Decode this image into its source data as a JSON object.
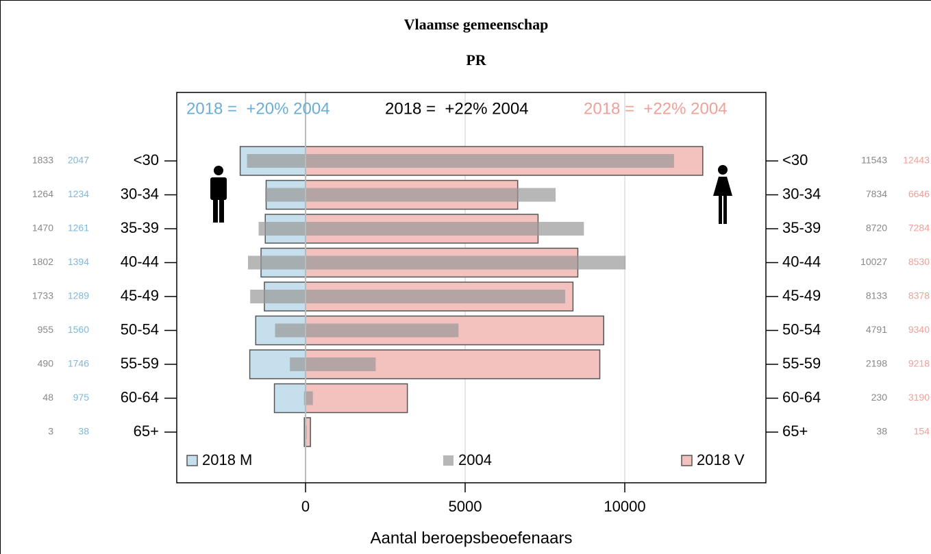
{
  "chart_data": {
    "type": "pyramid",
    "title": "Vlaamse gemeenschap",
    "subtitle": "PR",
    "x_label": "Aantal beroepsbeoefenaars",
    "categories": [
      "<30",
      "30-34",
      "35-39",
      "40-44",
      "45-49",
      "50-54",
      "55-59",
      "60-64",
      "65+"
    ],
    "series": [
      {
        "name": "2018 M",
        "color": "#c6dfed",
        "label_color": "#7fb8d8",
        "values": [
          2047,
          1234,
          1261,
          1394,
          1289,
          1560,
          1746,
          975,
          38
        ]
      },
      {
        "name": "2004",
        "color": "#999999",
        "label_color": "#888888",
        "values_m": [
          1833,
          1264,
          1470,
          1802,
          1733,
          955,
          490,
          48,
          3
        ],
        "values_v": [
          11543,
          7834,
          8720,
          10027,
          8133,
          4791,
          2198,
          230,
          38
        ]
      },
      {
        "name": "2018 V",
        "color": "#f4c2be",
        "label_color": "#f0a098",
        "values": [
          12443,
          6646,
          7284,
          8530,
          8378,
          9340,
          9218,
          3190,
          154
        ]
      }
    ],
    "annotations": [
      {
        "text": "2018 =  +20% 2004",
        "color": "#6aaed6"
      },
      {
        "text": "2018 =  +22% 2004",
        "color": "#000000"
      },
      {
        "text": "2018 =  +22% 2004",
        "color": "#f0a098"
      }
    ],
    "xlim": [
      -4034,
      14421
    ],
    "xticks": [
      0,
      5000,
      10000
    ],
    "grid": true
  }
}
